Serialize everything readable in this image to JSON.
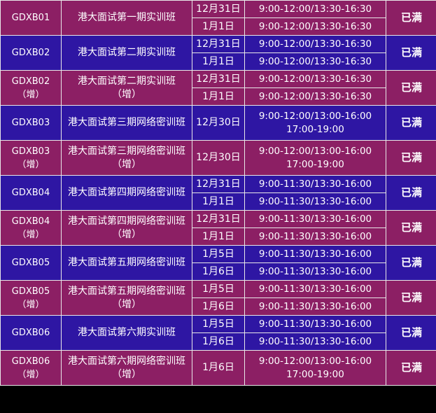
{
  "rows": [
    {
      "code": "GDXB01",
      "code_sub": "",
      "name": "港大面试第一期实训班",
      "name_sub": "",
      "dates": [
        "12月31日",
        "1月1日"
      ],
      "times": [
        [
          "9:00-12:00/13:30-16:30"
        ],
        [
          "9:00-12:00/13:30-16:30"
        ]
      ],
      "status": "已满",
      "color": "purple"
    },
    {
      "code": "GDXB02",
      "code_sub": "",
      "name": "港大面试第二期实训班",
      "name_sub": "",
      "dates": [
        "12月31日",
        "1月1日"
      ],
      "times": [
        [
          "9:00-12:00/13:30-16:30"
        ],
        [
          "9:00-12:00/13:30-16:30"
        ]
      ],
      "status": "已满",
      "color": "blue"
    },
    {
      "code": "GDXB02",
      "code_sub": "（增）",
      "name": "港大面试第二期实训班",
      "name_sub": "（增）",
      "dates": [
        "12月31日",
        "1月1日"
      ],
      "times": [
        [
          "9:00-12:00/13:30-16:30"
        ],
        [
          "9:00-12:00/13:30-16:30"
        ]
      ],
      "status": "已满",
      "color": "purple"
    },
    {
      "code": "GDXB03",
      "code_sub": "",
      "name": "港大面试第三期网络密训班",
      "name_sub": "",
      "dates": [
        "12月30日"
      ],
      "times": [
        [
          "9:00-12:00/13:00-16:00",
          "17:00-19:00"
        ]
      ],
      "status": "已满",
      "color": "blue"
    },
    {
      "code": "GDXB03",
      "code_sub": "（增）",
      "name": "港大面试第三期网络密训班",
      "name_sub": "（增）",
      "dates": [
        "12月30日"
      ],
      "times": [
        [
          "9:00-12:00/13:00-16:00",
          "17:00-19:00"
        ]
      ],
      "status": "已满",
      "color": "purple"
    },
    {
      "code": "GDXB04",
      "code_sub": "",
      "name": "港大面试第四期网络密训班",
      "name_sub": "",
      "dates": [
        "12月31日",
        "1月1日"
      ],
      "times": [
        [
          "9:00-11:30/13:30-16:00"
        ],
        [
          "9:00-11:30/13:30-16:00"
        ]
      ],
      "status": "已满",
      "color": "blue"
    },
    {
      "code": "GDXB04",
      "code_sub": "（增）",
      "name": "港大面试第四期网络密训班",
      "name_sub": "（增）",
      "dates": [
        "12月31日",
        "1月1日"
      ],
      "times": [
        [
          "9:00-11:30/13:30-16:00"
        ],
        [
          "9:00-11:30/13:30-16:00"
        ]
      ],
      "status": "已满",
      "color": "purple"
    },
    {
      "code": "GDXB05",
      "code_sub": "",
      "name": "港大面试第五期网络密训班",
      "name_sub": "",
      "dates": [
        "1月5日",
        "1月6日"
      ],
      "times": [
        [
          "9:00-11:30/13:30-16:00"
        ],
        [
          "9:00-11:30/13:30-16:00"
        ]
      ],
      "status": "已满",
      "color": "blue"
    },
    {
      "code": "GDXB05",
      "code_sub": "（增）",
      "name": "港大面试第五期网络密训班",
      "name_sub": "（增）",
      "dates": [
        "1月5日",
        "1月6日"
      ],
      "times": [
        [
          "9:00-11:30/13:30-16:00"
        ],
        [
          "9:00-11:30/13:30-16:00"
        ]
      ],
      "status": "已满",
      "color": "purple"
    },
    {
      "code": "GDXB06",
      "code_sub": "",
      "name": "港大面试第六期实训班",
      "name_sub": "",
      "dates": [
        "1月5日",
        "1月6日"
      ],
      "times": [
        [
          "9:00-11:30/13:30-16:00"
        ],
        [
          "9:00-11:30/13:30-16:00"
        ]
      ],
      "status": "已满",
      "color": "blue"
    },
    {
      "code": "GDXB06",
      "code_sub": "（增）",
      "name": "港大面试第六期网络密训班",
      "name_sub": "（增）",
      "dates": [
        "1月6日"
      ],
      "times": [
        [
          "9:00-12:00/13:00-16:00",
          "17:00-19:00"
        ]
      ],
      "status": "已满",
      "color": "purple"
    }
  ],
  "colors": {
    "purple": "#8c1f64",
    "blue": "#2e16a3",
    "grid": "#e9e9e9",
    "text": "#ffffff"
  }
}
